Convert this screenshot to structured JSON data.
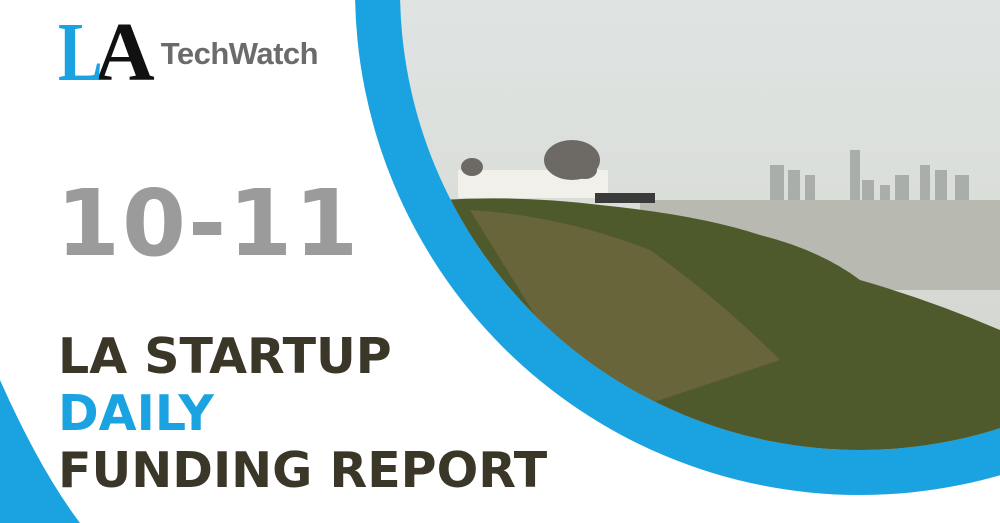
{
  "logo": {
    "mark_l": "L",
    "mark_a": "A",
    "name": "TechWatch"
  },
  "date": "10-11",
  "title": {
    "line1": "LA STARTUP",
    "line2": "DAILY",
    "line3": "FUNDING REPORT"
  },
  "colors": {
    "accent_blue": "#1aa3e0",
    "title_dark": "#3a3628",
    "date_gray": "#9b9b9b",
    "logo_gray": "#6b6b6b"
  },
  "image": {
    "subject": "griffith-observatory-la-skyline-photo"
  }
}
